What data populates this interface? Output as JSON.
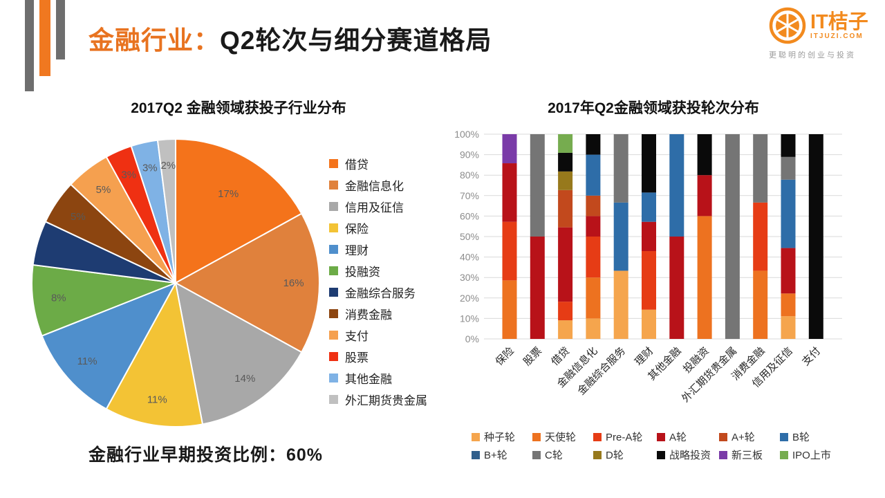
{
  "header": {
    "title_highlight": "金融行业：",
    "title_rest": "Q2轮次与细分赛道格局",
    "accent_color": "#e87320"
  },
  "logo": {
    "name": "IT桔子",
    "domain": "ITJUZI.COM",
    "tagline": "更聪明的创业与投资",
    "brand_color": "#f28a1e"
  },
  "footnote": "金融行业早期投资比例：60%",
  "chart_data": [
    {
      "type": "pie",
      "title": "2017Q2 金融领域获投子行业分布",
      "unit": "%",
      "legend_position": "right",
      "slices": [
        {
          "label": "借贷",
          "value": 17,
          "color": "#f4731b",
          "show_label": true
        },
        {
          "label": "金融信息化",
          "value": 16,
          "color": "#e0813c",
          "show_label": true
        },
        {
          "label": "信用及征信",
          "value": 14,
          "color": "#a8a8a8",
          "show_label": true
        },
        {
          "label": "保险",
          "value": 11,
          "color": "#f3c335",
          "show_label": true
        },
        {
          "label": "理财",
          "value": 11,
          "color": "#4f8fcc",
          "show_label": true
        },
        {
          "label": "投融资",
          "value": 8,
          "color": "#6cab47",
          "show_label": true
        },
        {
          "label": "金融综合服务",
          "value": 5,
          "color": "#1e3c72",
          "show_label": false
        },
        {
          "label": "消费金融",
          "value": 5,
          "color": "#8c4510",
          "show_label": true
        },
        {
          "label": "支付",
          "value": 5,
          "color": "#f5a04f",
          "show_label": true
        },
        {
          "label": "股票",
          "value": 3,
          "color": "#ef3012",
          "show_label": true
        },
        {
          "label": "其他金融",
          "value": 3,
          "color": "#7fb2e5",
          "show_label": true
        },
        {
          "label": "外汇期货贵金属",
          "value": 2,
          "color": "#c0c0c0",
          "show_label": true
        }
      ]
    },
    {
      "type": "bar",
      "stacked": true,
      "title": "2017年Q2金融领域获投轮次分布",
      "grid": true,
      "legend_position": "bottom",
      "ylim": [
        0,
        100
      ],
      "yticks": [
        "0%",
        "10%",
        "20%",
        "30%",
        "40%",
        "50%",
        "60%",
        "70%",
        "80%",
        "90%",
        "100%"
      ],
      "rounds": [
        {
          "name": "种子轮",
          "color": "#f5a54d"
        },
        {
          "name": "天使轮",
          "color": "#ed7220"
        },
        {
          "name": "Pre-A轮",
          "color": "#e63c15"
        },
        {
          "name": "A轮",
          "color": "#b81219"
        },
        {
          "name": "A+轮",
          "color": "#c2491d"
        },
        {
          "name": "B轮",
          "color": "#2e6da8"
        },
        {
          "name": "B+轮",
          "color": "#305f8c"
        },
        {
          "name": "C轮",
          "color": "#757575"
        },
        {
          "name": "D轮",
          "color": "#97791c"
        },
        {
          "name": "战略投资",
          "color": "#0a0a0a"
        },
        {
          "name": "新三板",
          "color": "#7a3ba8"
        },
        {
          "name": "IPO上市",
          "color": "#76ac4f"
        }
      ],
      "categories": [
        "保险",
        "股票",
        "借贷",
        "金融信息化",
        "金融综合服务",
        "理财",
        "其他金融",
        "投融资",
        "外汇期货贵金属",
        "消费金融",
        "信用及征信",
        "支付"
      ],
      "bars": [
        {
          "category": "保险",
          "segments": [
            [
              "天使轮",
              28.6
            ],
            [
              "Pre-A轮",
              28.6
            ],
            [
              "A轮",
              28.6
            ],
            [
              "新三板",
              14.2
            ]
          ]
        },
        {
          "category": "股票",
          "segments": [
            [
              "A轮",
              50
            ],
            [
              "C轮",
              50
            ]
          ]
        },
        {
          "category": "借贷",
          "segments": [
            [
              "种子轮",
              9.1
            ],
            [
              "Pre-A轮",
              9.1
            ],
            [
              "A轮",
              36.3
            ],
            [
              "A+轮",
              18.2
            ],
            [
              "D轮",
              9.1
            ],
            [
              "战略投资",
              9.1
            ],
            [
              "IPO上市",
              9.1
            ]
          ]
        },
        {
          "category": "金融信息化",
          "segments": [
            [
              "种子轮",
              10
            ],
            [
              "天使轮",
              20
            ],
            [
              "Pre-A轮",
              20
            ],
            [
              "A轮",
              10
            ],
            [
              "A+轮",
              10
            ],
            [
              "B轮",
              20
            ],
            [
              "战略投资",
              10
            ]
          ]
        },
        {
          "category": "金融综合服务",
          "segments": [
            [
              "种子轮",
              33.3
            ],
            [
              "B轮",
              33.3
            ],
            [
              "C轮",
              33.4
            ]
          ]
        },
        {
          "category": "理财",
          "segments": [
            [
              "种子轮",
              14.3
            ],
            [
              "Pre-A轮",
              28.6
            ],
            [
              "A轮",
              14.3
            ],
            [
              "B轮",
              14.3
            ],
            [
              "战略投资",
              28.5
            ]
          ]
        },
        {
          "category": "其他金融",
          "segments": [
            [
              "A轮",
              50
            ],
            [
              "B轮",
              50
            ]
          ]
        },
        {
          "category": "投融资",
          "segments": [
            [
              "天使轮",
              60
            ],
            [
              "A轮",
              20
            ],
            [
              "战略投资",
              20
            ]
          ]
        },
        {
          "category": "外汇期货贵金属",
          "segments": [
            [
              "C轮",
              100
            ]
          ]
        },
        {
          "category": "消费金融",
          "segments": [
            [
              "天使轮",
              33.3
            ],
            [
              "Pre-A轮",
              33.3
            ],
            [
              "C轮",
              33.4
            ]
          ]
        },
        {
          "category": "信用及征信",
          "segments": [
            [
              "种子轮",
              11.1
            ],
            [
              "天使轮",
              11.1
            ],
            [
              "A轮",
              22.2
            ],
            [
              "B轮",
              33.4
            ],
            [
              "C轮",
              11.1
            ],
            [
              "战略投资",
              11.1
            ]
          ]
        },
        {
          "category": "支付",
          "segments": [
            [
              "战略投资",
              100
            ]
          ]
        }
      ]
    }
  ]
}
